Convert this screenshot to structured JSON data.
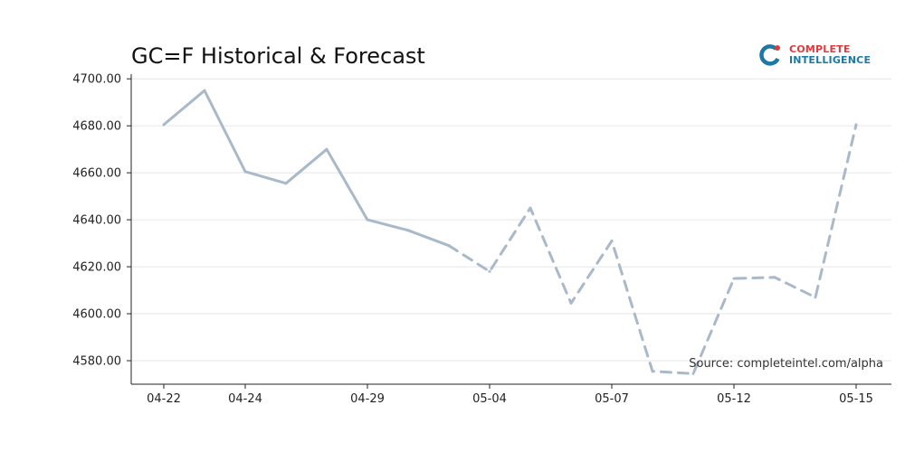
{
  "logo": {
    "line1": "COMPLETE",
    "line2": "INTELLIGENCE",
    "accent_red": "#e03a3e",
    "accent_blue": "#1b7aa5"
  },
  "colors": {
    "series": "#a9b9c9",
    "grid": "#e6e6e6",
    "axis": "#222222"
  },
  "chart_data": {
    "type": "line",
    "title": "GC=F Historical & Forecast",
    "xlabel": "",
    "ylabel": "",
    "annotation": "Source: completeintel.com/alpha",
    "ylim": [
      4570,
      4702
    ],
    "yticks": [
      4580,
      4600,
      4620,
      4640,
      4660,
      4680,
      4700
    ],
    "ytick_labels": [
      "4580.00",
      "4600.00",
      "4620.00",
      "4640.00",
      "4660.00",
      "4680.00",
      "4700.00"
    ],
    "xtick_labels": [
      "04-22",
      "04-24",
      "04-29",
      "05-04",
      "05-07",
      "05-12",
      "05-15"
    ],
    "xtick_index": [
      0,
      2,
      5,
      8,
      11,
      14,
      17
    ],
    "grid": true,
    "series": [
      {
        "style": "solid",
        "x": [
          "04-22",
          "04-23",
          "04-24",
          "04-25",
          "04-28",
          "04-29",
          "04-30",
          "05-01"
        ],
        "values": [
          4680.5,
          4695.0,
          4660.5,
          4655.5,
          4670.0,
          4640.0,
          4635.5,
          4629.0
        ]
      },
      {
        "style": "dashed",
        "x": [
          "05-01",
          "05-04",
          "05-05",
          "05-06",
          "05-07",
          "05-08",
          "05-11",
          "05-12",
          "05-13",
          "05-14",
          "05-15"
        ],
        "values": [
          4629.0,
          4618.0,
          4645.0,
          4604.5,
          4631.0,
          4575.5,
          4574.5,
          4615.0,
          4615.5,
          4607.0,
          4680.5
        ]
      }
    ]
  }
}
